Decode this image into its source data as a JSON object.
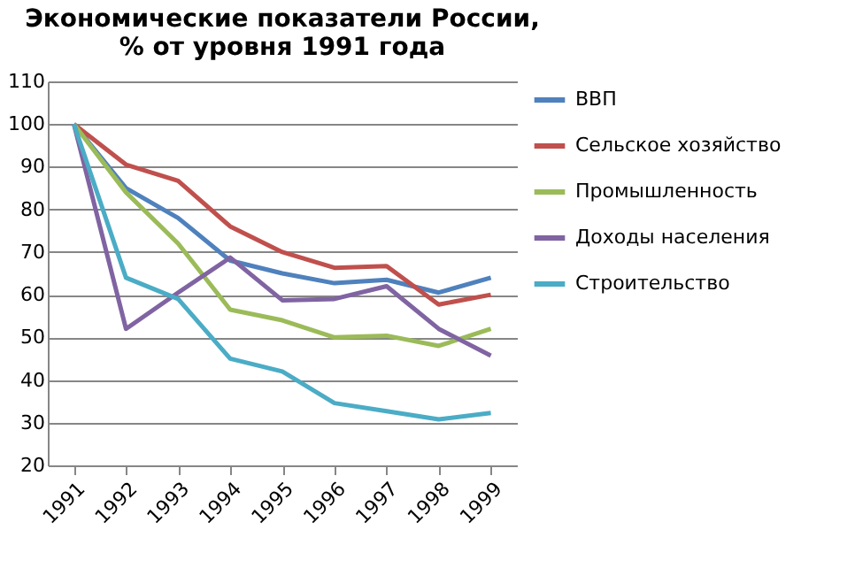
{
  "chart_data": {
    "type": "line",
    "title": [
      "Экономические показатели России,",
      "% от уровня 1991 года"
    ],
    "categories": [
      "1991",
      "1992",
      "1993",
      "1994",
      "1995",
      "1996",
      "1997",
      "1998",
      "1999"
    ],
    "series": [
      {
        "name": "ВВП",
        "color": "#4f81bd",
        "values": [
          100,
          85,
          78,
          68,
          65,
          62.7,
          63.5,
          60.5,
          64
        ]
      },
      {
        "name": "Сельское хозяйство",
        "color": "#c0504d",
        "values": [
          100,
          90.5,
          86.7,
          76,
          70,
          66.3,
          66.7,
          57.7,
          60
        ]
      },
      {
        "name": "Промышленность",
        "color": "#9bbb59",
        "values": [
          100,
          84,
          72,
          56.5,
          54,
          50,
          50.4,
          48,
          52
        ]
      },
      {
        "name": "Доходы населения",
        "color": "#8064a2",
        "values": [
          100,
          52,
          60.5,
          68.7,
          58.7,
          59,
          62,
          52,
          45.7
        ]
      },
      {
        "name": "Строительство",
        "color": "#4bacc6",
        "values": [
          100,
          64,
          59,
          45,
          42,
          34.6,
          32.7,
          30.8,
          32.3
        ]
      }
    ],
    "ylim": [
      20,
      110
    ],
    "yticks": [
      20,
      30,
      40,
      50,
      60,
      70,
      80,
      90,
      100,
      110
    ],
    "grid": "y",
    "legend": "right",
    "marker": "none",
    "line_style": "solid"
  }
}
